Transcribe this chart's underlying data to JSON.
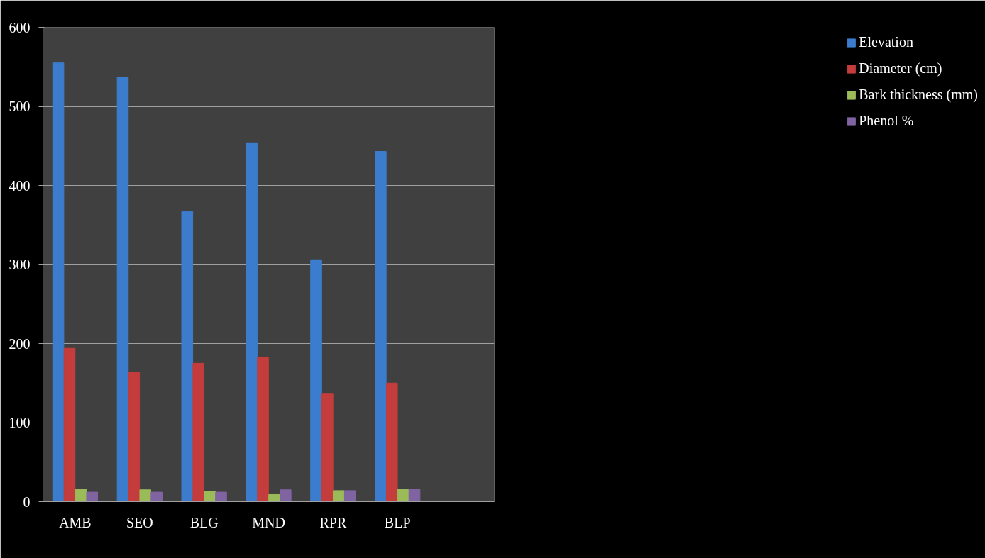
{
  "chart_data": {
    "type": "bar",
    "categories": [
      "AMB",
      "SEO",
      "BLG",
      "MND",
      "RPR",
      "BLP",
      null
    ],
    "series": [
      {
        "name": "Elevation",
        "color": "#3b7dcc",
        "values": [
          555,
          537,
          367,
          454,
          306,
          443,
          null
        ]
      },
      {
        "name": "Diameter (cm)",
        "color": "#c43c3c",
        "values": [
          194,
          164,
          175,
          183,
          137,
          150,
          null
        ]
      },
      {
        "name": "Bark thickness (mm)",
        "color": "#9bbb59",
        "values": [
          16,
          15,
          13,
          9,
          14,
          16,
          null
        ]
      },
      {
        "name": "Phenol %",
        "color": "#8064a2",
        "values": [
          12,
          12,
          12,
          15,
          14,
          16,
          null
        ]
      }
    ],
    "ylim": [
      0,
      600
    ],
    "yticks": [
      0,
      100,
      200,
      300,
      400,
      500,
      600
    ],
    "grid": "y",
    "legend": "right"
  }
}
